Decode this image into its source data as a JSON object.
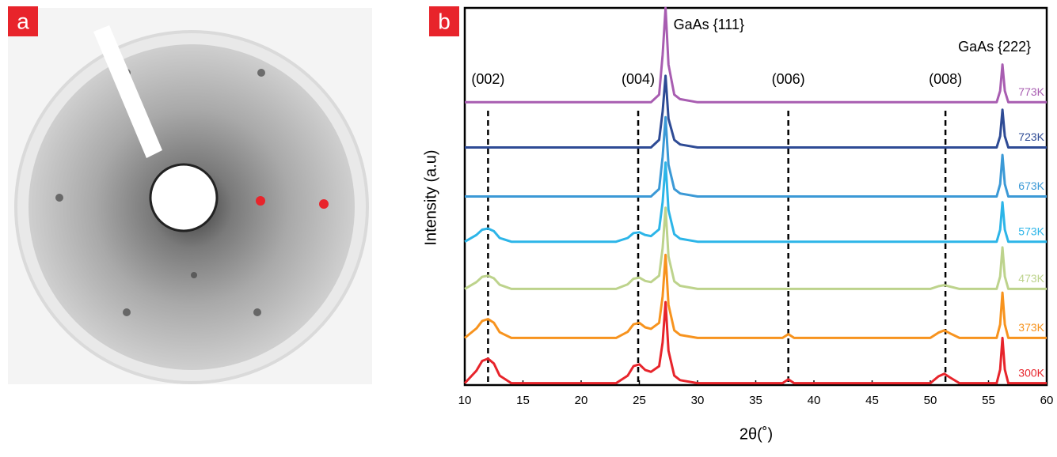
{
  "panel_labels": [
    "a",
    "b"
  ],
  "chart_data": {
    "type": "line",
    "xlabel": "2θ(˚)",
    "ylabel": "Intensity (a.u)",
    "xlim": [
      10,
      60
    ],
    "xticks": [
      10,
      15,
      20,
      25,
      30,
      35,
      40,
      45,
      50,
      55,
      60
    ],
    "ylim": [
      0,
      100
    ],
    "grid": false,
    "x": [
      10,
      11,
      11.5,
      12,
      12.5,
      13,
      14,
      16,
      20,
      23,
      24,
      24.5,
      25,
      25.5,
      26,
      26.7,
      27,
      27.25,
      27.5,
      28,
      28.5,
      30,
      35,
      37.3,
      37.8,
      38.3,
      40,
      45,
      50,
      50.7,
      51.2,
      51.7,
      52.5,
      55,
      55.7,
      56.0,
      56.2,
      56.4,
      56.7,
      60
    ],
    "series": [
      {
        "name": "773K",
        "color": "#a85db1",
        "values": [
          75,
          75,
          75,
          75,
          75,
          75,
          75,
          75,
          75,
          75,
          75,
          75,
          75,
          75,
          75,
          77,
          87.5,
          100,
          85,
          77,
          75.8,
          75,
          75,
          75,
          75,
          75,
          75,
          75,
          75,
          75,
          75,
          75,
          75,
          75,
          75,
          78,
          85,
          78,
          75,
          75
        ]
      },
      {
        "name": "723K",
        "color": "#2e4b95",
        "values": [
          63,
          63,
          63,
          63,
          63,
          63,
          63,
          63,
          63,
          63,
          63,
          63,
          63,
          63,
          63,
          65,
          72.5,
          82,
          70.6,
          65,
          63.8,
          63,
          63,
          63,
          63,
          63,
          63,
          63,
          63,
          63,
          63,
          63,
          63,
          63,
          63,
          66,
          73,
          66,
          63,
          63
        ]
      },
      {
        "name": "673K",
        "color": "#3b99d6",
        "values": [
          50,
          50,
          50,
          50,
          50,
          50,
          50,
          50,
          50,
          50,
          50,
          50,
          50,
          50,
          50,
          52,
          60.5,
          71,
          58.4,
          52,
          50.8,
          50,
          50,
          50,
          50,
          50,
          50,
          50,
          50,
          50,
          50,
          50,
          50,
          50,
          50,
          53.3,
          61,
          53.3,
          50,
          50
        ]
      },
      {
        "name": "573K",
        "color": "#2cb5e8",
        "values": [
          38,
          39.8,
          41.2,
          41.5,
          40.8,
          39,
          38,
          38,
          38,
          38,
          39,
          40.3,
          40.5,
          39.8,
          39.5,
          41.3,
          48.5,
          59,
          46.4,
          40,
          38.8,
          38,
          38,
          38,
          38,
          38,
          38,
          38,
          38,
          38,
          38,
          38,
          38,
          38,
          38,
          41.2,
          48.5,
          41.2,
          38,
          38
        ]
      },
      {
        "name": "473K",
        "color": "#bdd38c",
        "values": [
          25.5,
          27.3,
          28.7,
          29,
          28.3,
          26.6,
          25.5,
          25.5,
          25.5,
          25.5,
          26.7,
          28.2,
          28.5,
          27.6,
          27.3,
          29,
          36.3,
          47,
          34.1,
          27.5,
          26.3,
          25.5,
          25.5,
          25.5,
          25.5,
          25.5,
          25.5,
          25.5,
          25.5,
          26.2,
          26.5,
          26.1,
          25.5,
          25.5,
          25.5,
          28.8,
          36.5,
          28.8,
          25.5,
          25.5
        ]
      },
      {
        "name": "373K",
        "color": "#f7931e",
        "values": [
          12.5,
          15,
          17,
          17.5,
          16.5,
          14,
          12.5,
          12.5,
          12.5,
          12.5,
          14.1,
          16.1,
          16.5,
          15.3,
          14.9,
          16.5,
          23.5,
          34.5,
          21.3,
          14.5,
          13.3,
          12.5,
          12.5,
          12.5,
          13.5,
          12.5,
          12.5,
          12.5,
          12.5,
          13.9,
          14.5,
          13.7,
          12.5,
          12.5,
          12.5,
          16.1,
          24.5,
          16.1,
          12.5,
          12.5
        ]
      },
      {
        "name": "300K",
        "color": "#e7242b",
        "values": [
          0.5,
          3.8,
          6.4,
          7,
          5.7,
          2.5,
          0.5,
          0.5,
          0.5,
          0.5,
          2.5,
          5,
          5.5,
          4,
          3.5,
          5,
          11.3,
          22,
          9.1,
          2.5,
          1.3,
          0.5,
          0.5,
          0.5,
          1.5,
          0.5,
          0.5,
          0.5,
          0.5,
          2.3,
          3,
          2,
          0.5,
          0.5,
          0.5,
          4.1,
          12.5,
          4.1,
          0.5,
          0.5
        ]
      }
    ],
    "reference_lines": [
      {
        "label": "(002)",
        "x": 12
      },
      {
        "label": "(004)",
        "x": 24.9
      },
      {
        "label": "(006)",
        "x": 37.8
      },
      {
        "label": "(008)",
        "x": 51.3
      }
    ],
    "annotations": [
      {
        "text": "GaAs {111}",
        "x": 27.25
      },
      {
        "text": "GaAs {222}",
        "x": 56.2
      }
    ]
  }
}
